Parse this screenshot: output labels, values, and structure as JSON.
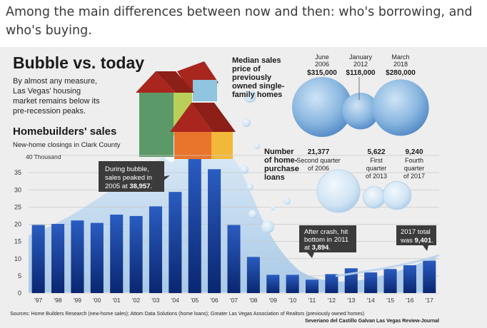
{
  "caption": "Among the main differences between now and then: who's borrowing, and who's buying.",
  "graphic": {
    "title": "Bubble vs. today",
    "intro": [
      "By almost any measure,",
      "Las Vegas' housing",
      "market remains below its",
      "pre-recession peaks."
    ],
    "median_heading": [
      "Median sales",
      "price of",
      "previously",
      "owned single-",
      "family homes"
    ],
    "loans_heading": [
      "Number",
      "of home-",
      "purchase",
      "loans"
    ],
    "sources": "Sources: Home Builders Research (new-home sales); Attom Data Solutions (home loans); Greater Las Vegas Association of Realtors (previously owned homes)",
    "credit": "Severiano del Castillo Galvan Las Vegas Review-Journal"
  },
  "median_prices": [
    {
      "date": [
        "June",
        "2006"
      ],
      "value": "$315,000",
      "amount": 315000
    },
    {
      "date": [
        "January",
        "2012"
      ],
      "value": "$118,000",
      "amount": 118000
    },
    {
      "date": [
        "March",
        "2018"
      ],
      "value": "$280,000",
      "amount": 280000
    }
  ],
  "loans": [
    {
      "value": "21,377",
      "label": [
        "Second quarter",
        "of 2006"
      ],
      "amount": 21377
    },
    {
      "value": "5,622",
      "label": [
        "First",
        "quarter",
        "of 2013"
      ],
      "amount": 5622
    },
    {
      "value": "9,240",
      "label": [
        "Fourth",
        "quarter",
        "of 2017"
      ],
      "amount": 9240
    }
  ],
  "callouts": [
    {
      "lines": [
        "During bubble,",
        "sales peaked in"
      ],
      "last": "2005 at ",
      "bold": "38,957",
      "end": "."
    },
    {
      "lines": [
        "After crash, hit",
        "bottom in 2011"
      ],
      "last": "at ",
      "bold": "3,894",
      "end": "."
    },
    {
      "lines": [
        "2017 total"
      ],
      "last": "was ",
      "bold": "9,401",
      "end": "."
    }
  ],
  "chart_data": {
    "type": "bar",
    "title": "Homebuilders' sales",
    "subtitle": "New-home closings in Clark County",
    "y_unit_label": "40 Thousand",
    "ylim": [
      0,
      40
    ],
    "yticks": [
      0,
      5,
      10,
      15,
      20,
      25,
      30,
      35,
      40
    ],
    "categories": [
      "'97",
      "'98",
      "'99",
      "'00",
      "'01",
      "'02",
      "'03",
      "'04",
      "'05",
      "'06",
      "'07",
      "'08",
      "'09",
      "'10",
      "'11",
      "'12",
      "'13",
      "'14",
      "'15",
      "'16",
      "'17"
    ],
    "values": [
      19.8,
      20.1,
      21.1,
      20.4,
      22.8,
      22.4,
      25.2,
      29.4,
      38.957,
      36.0,
      19.8,
      10.5,
      5.3,
      5.3,
      3.894,
      5.5,
      7.2,
      6.0,
      7.0,
      8.1,
      9.401
    ],
    "colors": {
      "bar_top": "#1f52b3",
      "bar_bottom": "#0b2a78",
      "grid": "#c8c8c8"
    }
  }
}
